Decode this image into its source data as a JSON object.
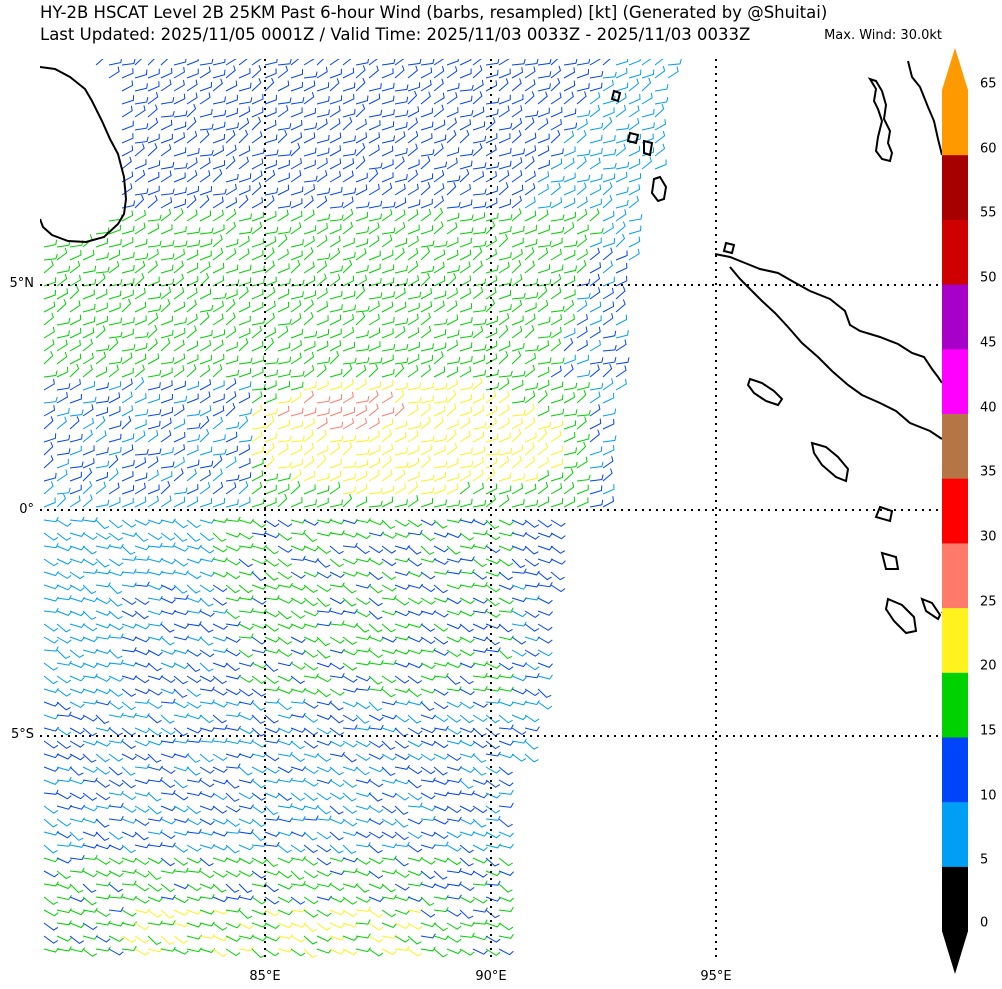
{
  "header": {
    "title_line1": "HY-2B HSCAT Level 2B 25KM Past 6-hour Wind (barbs, resampled) [kt] (Generated by @Shuitai)",
    "title_line2": "Last Updated: 2025/11/05 0001Z / Valid Time: 2025/11/03 0033Z - 2025/11/03 0033Z",
    "max_wind": "Max. Wind: 30.0kt"
  },
  "map": {
    "lat_labels": [
      "5°N",
      "0°",
      "5°S"
    ],
    "lon_labels": [
      "85°E",
      "90°E",
      "95°E"
    ],
    "gridline_style": "dotted",
    "land_outline_color": "#000000",
    "regions": [
      "Sri Lanka",
      "Sumatra",
      "Andaman and Nicobar Islands"
    ]
  },
  "colorbar": {
    "ticks": [
      "0",
      "5",
      "10",
      "15",
      "20",
      "25",
      "30",
      "35",
      "40",
      "45",
      "50",
      "55",
      "60",
      "65"
    ],
    "colors": [
      "#000000",
      "#009ef5",
      "#0044fa",
      "#00d100",
      "#fff21f",
      "#ff7a6b",
      "#ff0000",
      "#b57545",
      "#ff00ff",
      "#a600c9",
      "#cf0000",
      "#a60000",
      "#ff9900"
    ]
  },
  "chart_data": {
    "type": "wind_barbs",
    "units": "kt",
    "lon_range": [
      80,
      100
    ],
    "lat_range": [
      -10,
      10
    ],
    "max_wind_kt": 30.0,
    "zones": [
      {
        "speed_class": "5-10",
        "area": "most of swath south of equator, northeast part"
      },
      {
        "speed_class": "10-15",
        "area": "northern swath and scattered south"
      },
      {
        "speed_class": "15-20",
        "area": "band from 2°N to 6°N and 0° to 3°S, far south"
      },
      {
        "speed_class": "20-25",
        "area": "patch near 86-91°E, 0-3°N and near 9°S"
      },
      {
        "speed_class": "25-30",
        "area": "small patch near 86-90°E, 1.5-2.5°N"
      },
      {
        "speed_class": "30-35",
        "area": "isolated barbs near 86°E, 2°N"
      }
    ]
  }
}
